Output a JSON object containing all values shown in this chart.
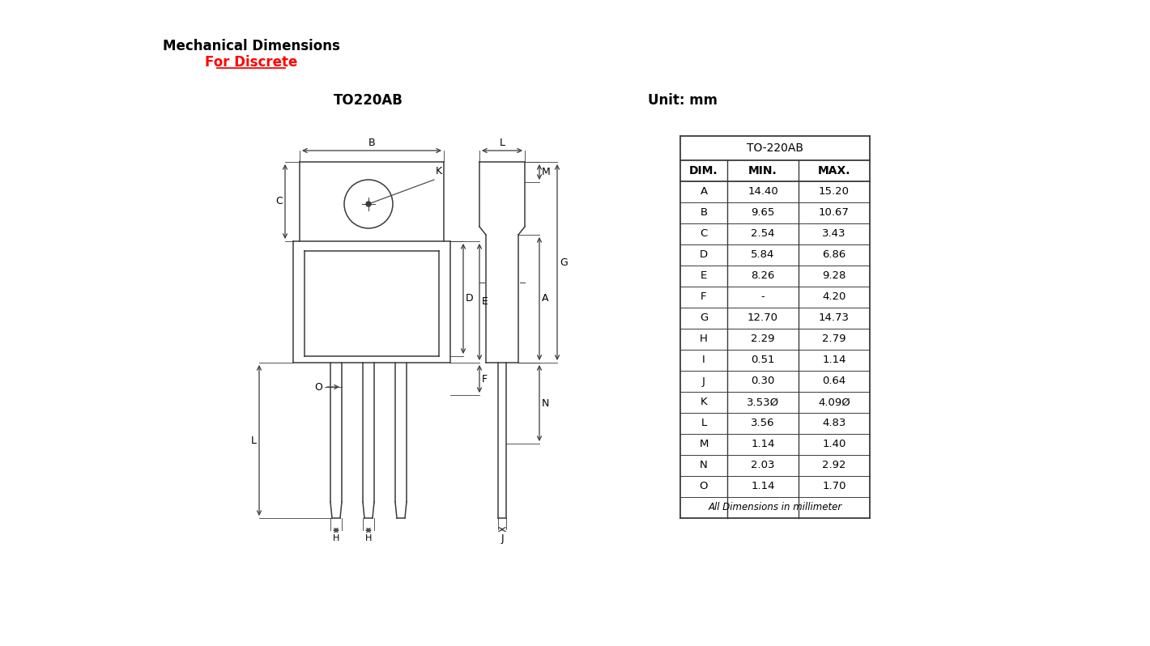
{
  "title1": "Mechanical Dimensions",
  "title2": "For Discrete",
  "package_name": "TO220AB",
  "unit_label": "Unit: mm",
  "bg_color": "#ffffff",
  "line_color": "#3a3a3a",
  "table_header": "TO-220AB",
  "col_headers": [
    "DIM.",
    "MIN.",
    "MAX."
  ],
  "table_data": [
    [
      "A",
      "14.40",
      "15.20"
    ],
    [
      "B",
      "9.65",
      "10.67"
    ],
    [
      "C",
      "2.54",
      "3.43"
    ],
    [
      "D",
      "5.84",
      "6.86"
    ],
    [
      "E",
      "8.26",
      "9.28"
    ],
    [
      "F",
      "-",
      "4.20"
    ],
    [
      "G",
      "12.70",
      "14.73"
    ],
    [
      "H",
      "2.29",
      "2.79"
    ],
    [
      "I",
      "0.51",
      "1.14"
    ],
    [
      "J",
      "0.30",
      "0.64"
    ],
    [
      "K",
      "3.53Ø",
      "4.09Ø"
    ],
    [
      "L",
      "3.56",
      "4.83"
    ],
    [
      "M",
      "1.14",
      "1.40"
    ],
    [
      "N",
      "2.03",
      "2.92"
    ],
    [
      "O",
      "1.14",
      "1.70"
    ]
  ],
  "footer": "All Dimensions in millimeter"
}
